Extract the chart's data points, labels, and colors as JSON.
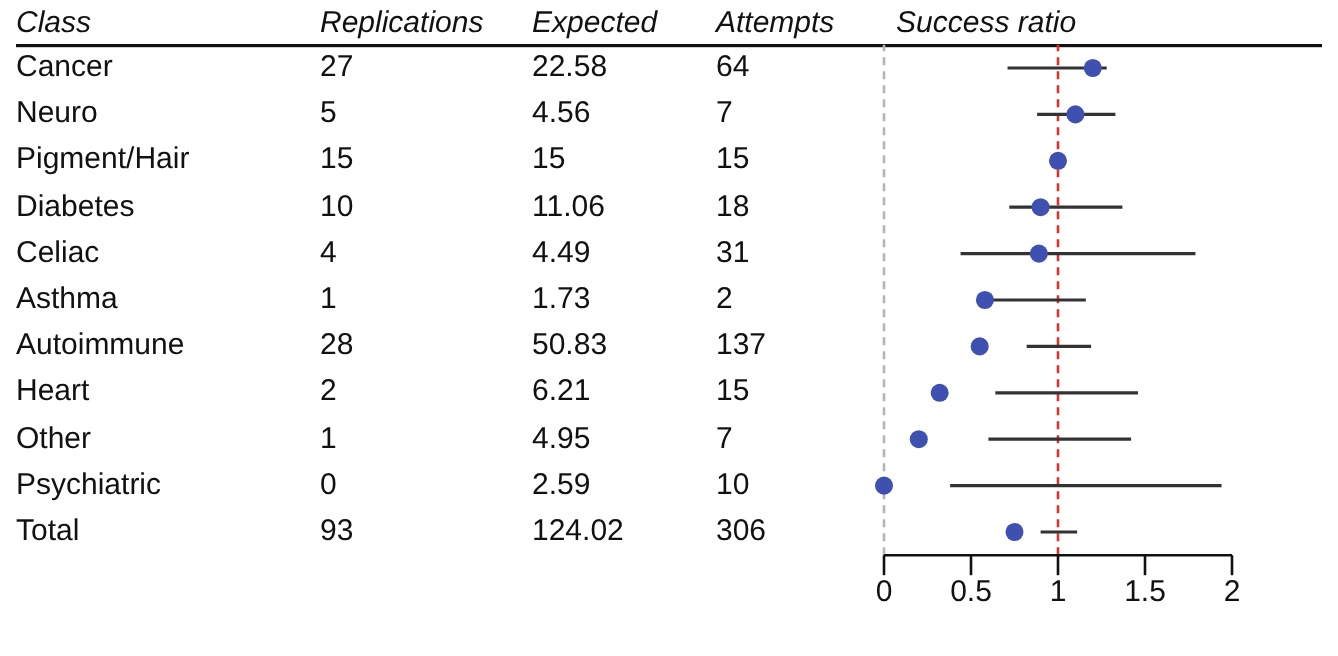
{
  "chart_data": [
    {
      "type": "other",
      "ylabel": "Class",
      "categories": [
        "Replications",
        "Expected",
        "Attempts"
      ],
      "y_categories": [
        "Cancer",
        "Neuro",
        "Pigment/Hair",
        "Diabetes",
        "Celiac",
        "Asthma",
        "Autoimmune",
        "Heart",
        "Other",
        "Psychiatric",
        "Total"
      ],
      "cell_labels": [
        [
          "27",
          "22.58",
          "64"
        ],
        [
          "5",
          "4.56",
          "7"
        ],
        [
          "15",
          "15",
          "15"
        ],
        [
          "10",
          "11.06",
          "18"
        ],
        [
          "4",
          "4.49",
          "31"
        ],
        [
          "1",
          "1.73",
          "2"
        ],
        [
          "28",
          "50.83",
          "137"
        ],
        [
          "2",
          "6.21",
          "15"
        ],
        [
          "1",
          "4.95",
          "7"
        ],
        [
          "0",
          "2.59",
          "10"
        ],
        [
          "93",
          "124.02",
          "306"
        ]
      ]
    },
    {
      "type": "scatter",
      "title": "Success ratio",
      "orientation": "horizontal",
      "categories": [
        null,
        null,
        null,
        null,
        null,
        null,
        null,
        null,
        null,
        null,
        null
      ],
      "values": [
        1.2,
        1.1,
        1.0,
        0.9,
        0.89,
        0.58,
        0.55,
        0.32,
        0.2,
        0,
        0.75
      ],
      "errors": [
        [
          0.71,
          1.28
        ],
        [
          0.88,
          1.33
        ],
        null,
        [
          0.72,
          1.37
        ],
        [
          0.44,
          1.79
        ],
        [
          0.57,
          1.16
        ],
        [
          0.82,
          1.19
        ],
        [
          0.64,
          1.46
        ],
        [
          0.6,
          1.42
        ],
        [
          0.38,
          1.94
        ],
        [
          0.9,
          1.11
        ]
      ],
      "color": "#3f51b0",
      "marker": "circle",
      "xlim": [
        0,
        2
      ],
      "xticks": [
        0,
        0.5,
        1,
        1.5,
        2
      ],
      "tick_labels": "x",
      "ref_lines": [
        {
          "axis": "x",
          "value": 0,
          "color": "#b5b5b5",
          "line_style": "dashed"
        },
        {
          "axis": "x",
          "value": 1,
          "color": "#e0302a",
          "line_style": "dashed"
        }
      ]
    }
  ]
}
